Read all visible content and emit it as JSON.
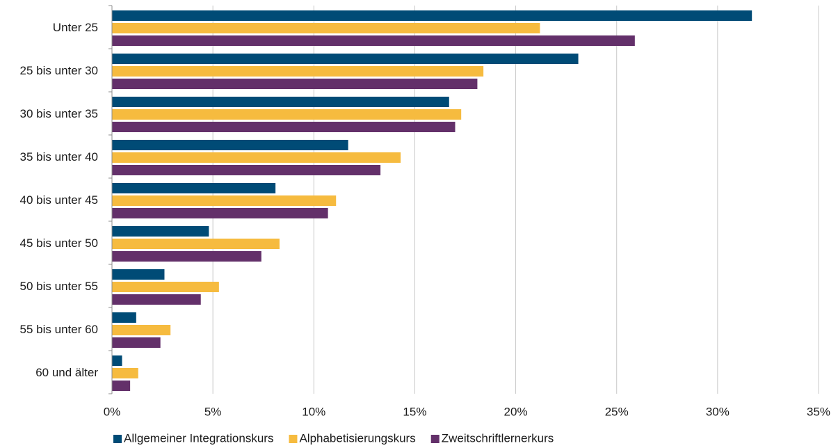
{
  "chart_data": {
    "type": "bar",
    "orientation": "horizontal",
    "title": "",
    "xlabel": "",
    "ylabel": "",
    "xlim": [
      0,
      35
    ],
    "x_ticks": [
      0,
      5,
      10,
      15,
      20,
      25,
      30,
      35
    ],
    "x_tick_labels": [
      "0%",
      "5%",
      "10%",
      "15%",
      "20%",
      "25%",
      "30%",
      "35%"
    ],
    "grid": "vertical",
    "legend_position": "bottom",
    "categories": [
      "Unter 25",
      "25 bis unter 30",
      "30 bis unter 35",
      "35 bis unter 40",
      "40 bis unter 45",
      "45 bis unter 50",
      "50 bis unter 55",
      "55 bis unter 60",
      "60 und älter"
    ],
    "series": [
      {
        "name": "Allgemeiner Integrationskurs",
        "color": "#004b76",
        "values": [
          31.7,
          23.1,
          16.7,
          11.7,
          8.1,
          4.8,
          2.6,
          1.2,
          0.5
        ]
      },
      {
        "name": "Alphabetisierungskurs",
        "color": "#f6bb3f",
        "values": [
          21.2,
          18.4,
          17.3,
          14.3,
          11.1,
          8.3,
          5.3,
          2.9,
          1.3
        ]
      },
      {
        "name": "Zweitschriftlernerkurs",
        "color": "#63306a",
        "values": [
          25.9,
          18.1,
          17.0,
          13.3,
          10.7,
          7.4,
          4.4,
          2.4,
          0.9
        ]
      }
    ]
  }
}
